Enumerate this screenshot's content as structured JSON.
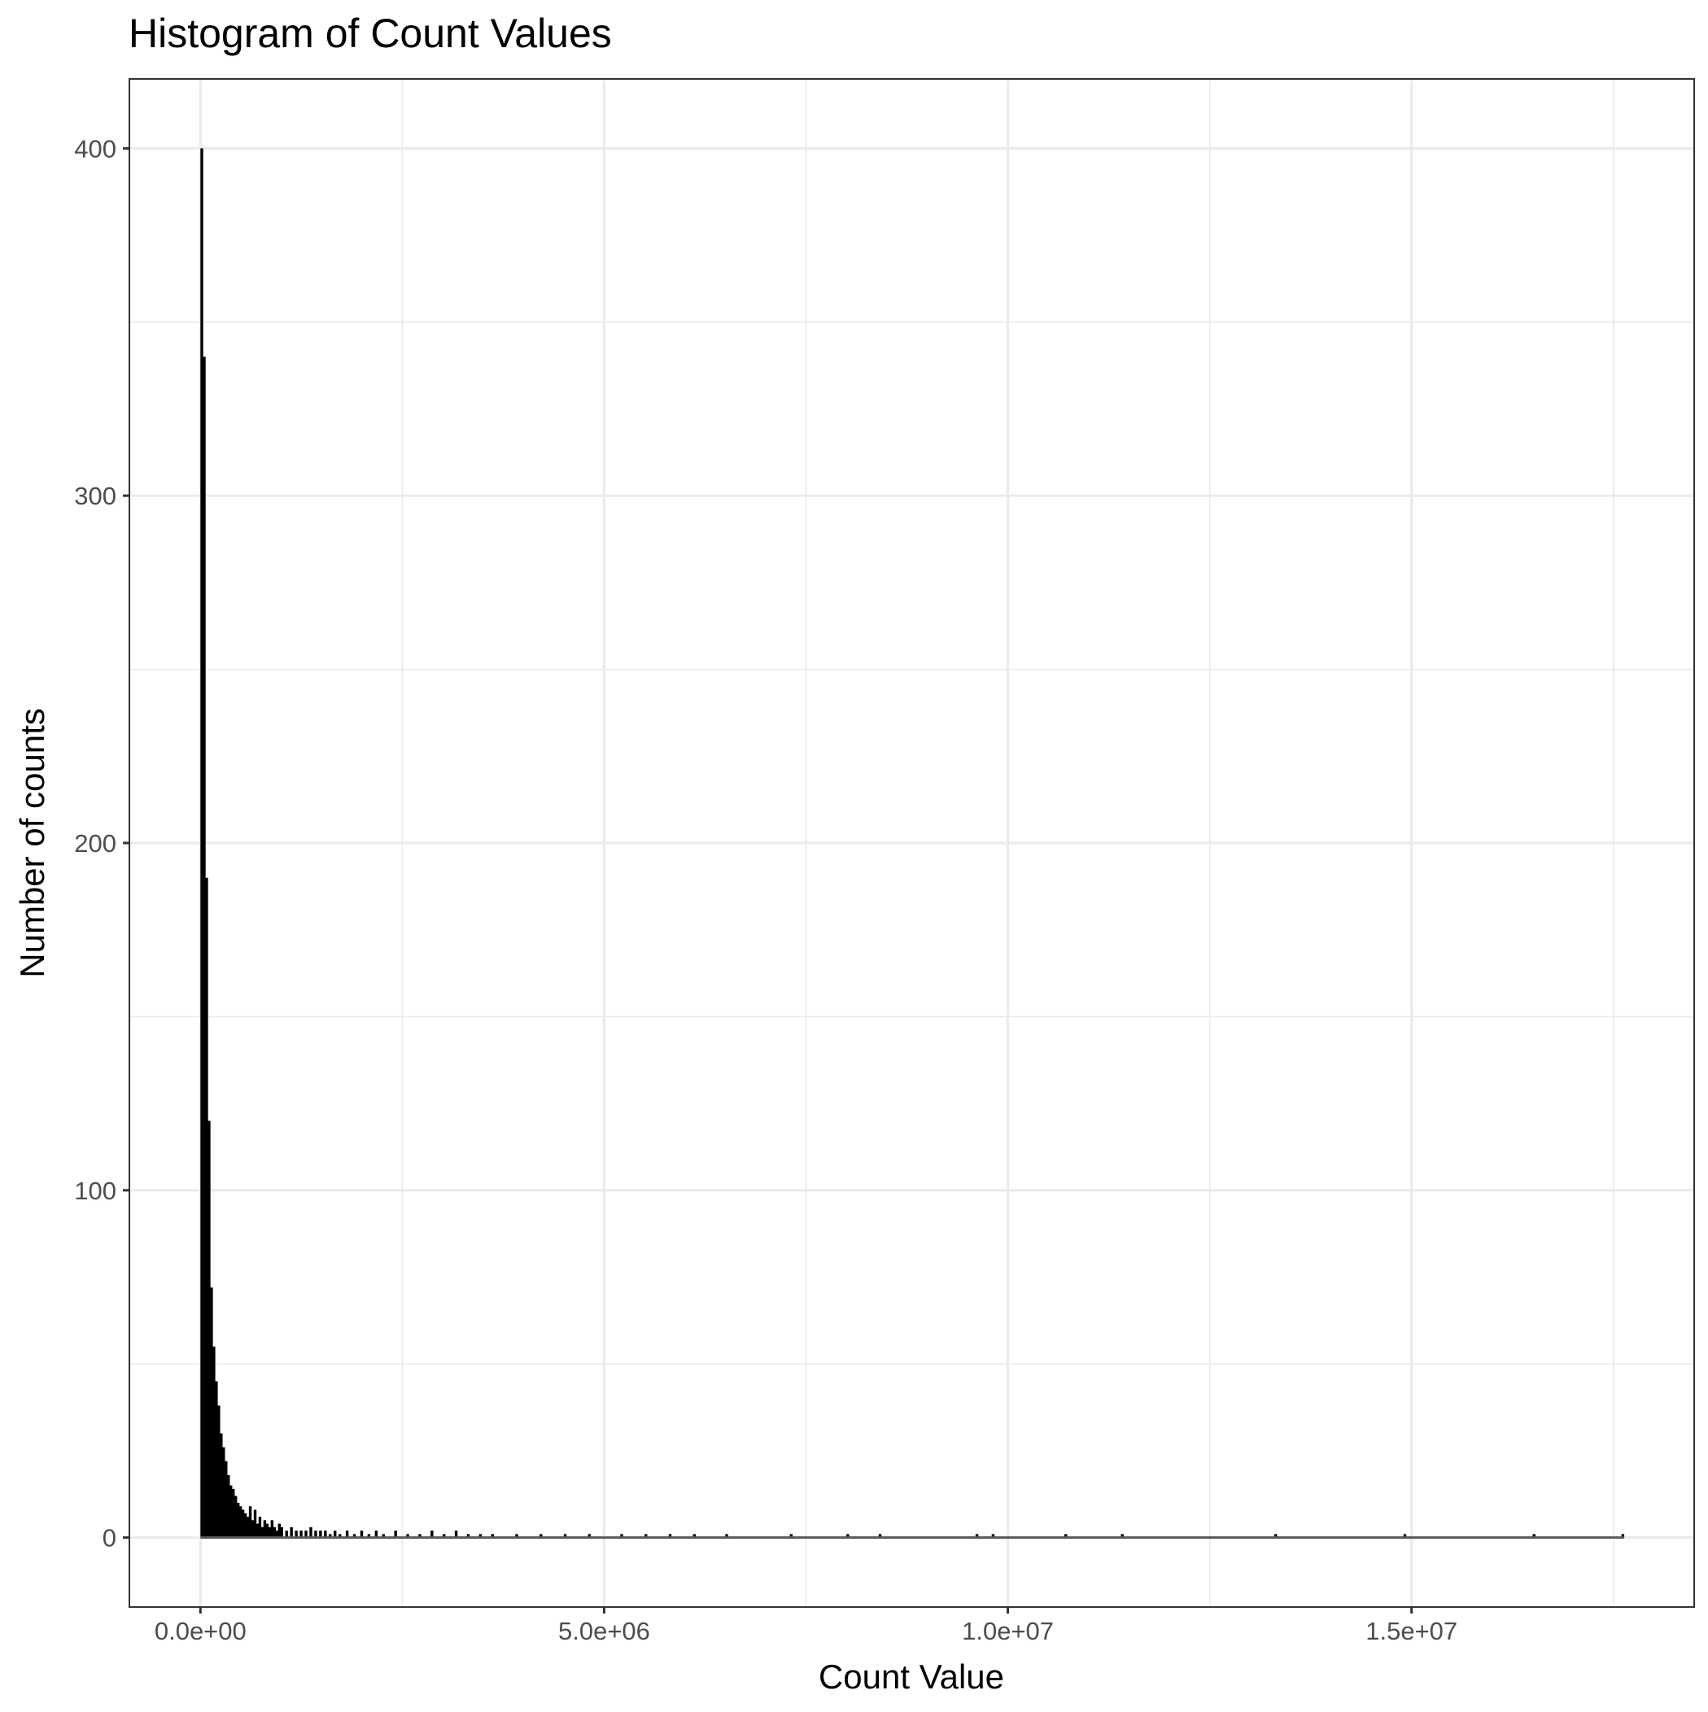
{
  "chart_data": {
    "type": "bar",
    "subtype": "histogram",
    "title": "Histogram of Count Values",
    "xlabel": "Count Value",
    "ylabel": "Number of counts",
    "xlim": [
      -880000,
      18500000
    ],
    "ylim": [
      -20,
      420
    ],
    "x_ticks": [
      0,
      5000000,
      10000000,
      15000000
    ],
    "x_tick_labels": [
      "0.0e+00",
      "5.0e+06",
      "1.0e+07",
      "1.5e+07"
    ],
    "y_ticks": [
      0,
      100,
      200,
      300,
      400
    ],
    "y_tick_labels": [
      "0",
      "100",
      "200",
      "300",
      "400"
    ],
    "grid": true,
    "theme": "black-and-white",
    "bar_color": "#000000",
    "bin_width": 30000,
    "bins_x": [
      0,
      30000,
      60000,
      90000,
      120000,
      150000,
      180000,
      210000,
      240000,
      270000,
      300000,
      330000,
      360000,
      390000,
      420000,
      450000,
      480000,
      510000,
      540000,
      570000,
      600000,
      630000,
      660000,
      690000,
      720000,
      750000,
      780000,
      810000,
      840000,
      870000,
      900000,
      930000,
      960000,
      990000,
      1050000,
      1110000,
      1170000,
      1230000,
      1290000,
      1350000,
      1410000,
      1470000,
      1530000,
      1590000,
      1650000,
      1710000,
      1800000,
      1890000,
      1980000,
      2070000,
      2160000,
      2250000,
      2400000,
      2550000,
      2700000,
      2850000,
      3000000,
      3150000,
      3300000,
      3450000,
      3600000,
      3900000,
      4200000,
      4500000,
      4800000,
      5200000,
      5500000,
      5800000,
      6100000,
      6500000,
      7300000,
      8000000,
      8400000,
      9600000,
      9800000,
      10700000,
      11400000,
      13300000,
      14900000,
      16500000,
      17600000
    ],
    "counts": [
      400,
      340,
      190,
      120,
      72,
      55,
      45,
      38,
      30,
      26,
      22,
      18,
      15,
      14,
      12,
      10,
      9,
      8,
      7,
      6,
      9,
      5,
      8,
      4,
      6,
      3,
      5,
      4,
      3,
      5,
      3,
      2,
      4,
      3,
      2,
      3,
      2,
      2,
      2,
      3,
      2,
      2,
      2,
      1,
      2,
      1,
      2,
      1,
      2,
      1,
      2,
      1,
      2,
      1,
      1,
      2,
      1,
      2,
      1,
      1,
      1,
      1,
      1,
      1,
      1,
      1,
      1,
      1,
      1,
      1,
      1,
      1,
      1,
      1,
      1,
      1,
      1,
      1,
      1,
      1,
      1
    ]
  }
}
